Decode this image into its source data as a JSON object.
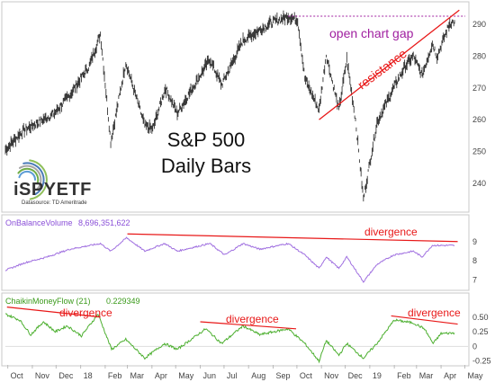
{
  "chart_data": [
    {
      "type": "line",
      "title": "S&P 500",
      "subtitle": "Daily Bars",
      "series": [
        {
          "name": ""
        }
      ],
      "ylim": [
        232,
        296
      ],
      "yticks": [
        240,
        250,
        260,
        270,
        280,
        290
      ],
      "anchor_points": [
        {
          "x": "2017-09-28",
          "y": 250.5
        },
        {
          "x": "2017-10-20",
          "y": 256.5
        },
        {
          "x": "2017-11-06",
          "y": 258.8
        },
        {
          "x": "2017-11-29",
          "y": 262
        },
        {
          "x": "2017-12-19",
          "y": 268
        },
        {
          "x": "2018-01-12",
          "y": 277
        },
        {
          "x": "2018-01-26",
          "y": 287
        },
        {
          "x": "2018-02-08",
          "y": 253
        },
        {
          "x": "2018-02-27",
          "y": 278
        },
        {
          "x": "2018-03-23",
          "y": 258
        },
        {
          "x": "2018-04-02",
          "y": 257
        },
        {
          "x": "2018-04-18",
          "y": 270
        },
        {
          "x": "2018-05-03",
          "y": 262
        },
        {
          "x": "2018-06-13",
          "y": 279
        },
        {
          "x": "2018-06-28",
          "y": 271
        },
        {
          "x": "2018-07-25",
          "y": 285
        },
        {
          "x": "2018-08-29",
          "y": 290.5
        },
        {
          "x": "2018-09-20",
          "y": 292.5
        },
        {
          "x": "2018-10-02",
          "y": 291.5
        },
        {
          "x": "2018-10-11",
          "y": 273
        },
        {
          "x": "2018-10-29",
          "y": 263
        },
        {
          "x": "2018-11-07",
          "y": 280.5
        },
        {
          "x": "2018-11-23",
          "y": 263
        },
        {
          "x": "2018-12-03",
          "y": 279
        },
        {
          "x": "2018-12-14",
          "y": 260
        },
        {
          "x": "2018-12-24",
          "y": 235
        },
        {
          "x": "2019-01-10",
          "y": 259
        },
        {
          "x": "2019-01-31",
          "y": 270
        },
        {
          "x": "2019-02-15",
          "y": 277
        },
        {
          "x": "2019-02-25",
          "y": 280
        },
        {
          "x": "2019-03-08",
          "y": 274
        },
        {
          "x": "2019-03-21",
          "y": 284
        },
        {
          "x": "2019-03-27",
          "y": 280
        },
        {
          "x": "2019-04-12",
          "y": 290.5
        },
        {
          "x": "2019-04-18",
          "y": 290.8
        }
      ],
      "annotations": {
        "gap_label": "open chart gap",
        "gap_level": 292.6,
        "resistance_label": "resistance",
        "resistance_line": [
          {
            "x": "2018-10-29",
            "y": 260
          },
          {
            "x": "2019-04-24",
            "y": 294.5
          }
        ]
      }
    },
    {
      "type": "line",
      "title": "OnBalanceVolume",
      "current_value": "8,696,351,622",
      "ylim": [
        6.5,
        9.6
      ],
      "yticks": [
        7,
        8,
        9
      ],
      "anchor_points": [
        {
          "x": "2017-09-28",
          "y": 7.5
        },
        {
          "x": "2017-10-23",
          "y": 7.9
        },
        {
          "x": "2017-11-20",
          "y": 8.2
        },
        {
          "x": "2017-12-18",
          "y": 8.6
        },
        {
          "x": "2018-01-26",
          "y": 8.9
        },
        {
          "x": "2018-02-08",
          "y": 8.5
        },
        {
          "x": "2018-02-28",
          "y": 9.2
        },
        {
          "x": "2018-03-23",
          "y": 8.5
        },
        {
          "x": "2018-04-17",
          "y": 8.9
        },
        {
          "x": "2018-05-03",
          "y": 8.5
        },
        {
          "x": "2018-06-13",
          "y": 8.9
        },
        {
          "x": "2018-07-02",
          "y": 8.3
        },
        {
          "x": "2018-07-25",
          "y": 8.9
        },
        {
          "x": "2018-08-15",
          "y": 8.6
        },
        {
          "x": "2018-09-20",
          "y": 8.9
        },
        {
          "x": "2018-10-11",
          "y": 8.3
        },
        {
          "x": "2018-10-29",
          "y": 7.6
        },
        {
          "x": "2018-11-07",
          "y": 8.2
        },
        {
          "x": "2018-11-23",
          "y": 7.6
        },
        {
          "x": "2018-12-03",
          "y": 8.2
        },
        {
          "x": "2018-12-24",
          "y": 6.9
        },
        {
          "x": "2019-01-10",
          "y": 7.8
        },
        {
          "x": "2019-01-31",
          "y": 8.3
        },
        {
          "x": "2019-02-25",
          "y": 8.5
        },
        {
          "x": "2019-03-08",
          "y": 8.2
        },
        {
          "x": "2019-03-21",
          "y": 8.8
        },
        {
          "x": "2019-04-18",
          "y": 8.8
        }
      ],
      "annotations": {
        "divergence_label": "divergence",
        "divergence_line": [
          {
            "x": "2018-03-01",
            "y": 9.4
          },
          {
            "x": "2019-04-22",
            "y": 9.0
          }
        ]
      }
    },
    {
      "type": "line",
      "title": "ChaikinMoneyFlow (21)",
      "current_value": "0.229349",
      "ylim": [
        -0.3,
        0.68
      ],
      "yticks": [
        -0.25,
        0,
        0.25,
        0.5
      ],
      "anchor_points": [
        {
          "x": "2017-09-28",
          "y": 0.55
        },
        {
          "x": "2017-10-16",
          "y": 0.45
        },
        {
          "x": "2017-10-30",
          "y": 0.2
        },
        {
          "x": "2017-11-15",
          "y": 0.42
        },
        {
          "x": "2017-11-30",
          "y": 0.25
        },
        {
          "x": "2017-12-15",
          "y": 0.35
        },
        {
          "x": "2018-01-02",
          "y": 0.18
        },
        {
          "x": "2018-01-23",
          "y": 0.55
        },
        {
          "x": "2018-02-09",
          "y": -0.05
        },
        {
          "x": "2018-02-27",
          "y": 0.12
        },
        {
          "x": "2018-03-23",
          "y": -0.2
        },
        {
          "x": "2018-04-17",
          "y": 0.05
        },
        {
          "x": "2018-05-03",
          "y": -0.05
        },
        {
          "x": "2018-06-08",
          "y": 0.3
        },
        {
          "x": "2018-06-28",
          "y": 0.05
        },
        {
          "x": "2018-07-25",
          "y": 0.35
        },
        {
          "x": "2018-08-15",
          "y": 0.2
        },
        {
          "x": "2018-09-20",
          "y": 0.3
        },
        {
          "x": "2018-10-11",
          "y": 0.05
        },
        {
          "x": "2018-10-29",
          "y": -0.25
        },
        {
          "x": "2018-11-07",
          "y": 0.1
        },
        {
          "x": "2018-11-23",
          "y": -0.15
        },
        {
          "x": "2018-12-03",
          "y": 0.05
        },
        {
          "x": "2018-12-24",
          "y": -0.2
        },
        {
          "x": "2019-01-10",
          "y": 0.05
        },
        {
          "x": "2019-02-01",
          "y": 0.45
        },
        {
          "x": "2019-02-25",
          "y": 0.4
        },
        {
          "x": "2019-03-11",
          "y": 0.3
        },
        {
          "x": "2019-03-22",
          "y": 0.05
        },
        {
          "x": "2019-04-01",
          "y": 0.22
        },
        {
          "x": "2019-04-18",
          "y": 0.23
        }
      ],
      "annotations": {
        "divergence_label": "divergence",
        "divergence_lines": [
          {
            "label": "divergence",
            "points": [
              {
                "x": "2017-09-30",
                "y": 0.67
              },
              {
                "x": "2018-01-26",
                "y": 0.5
              }
            ]
          },
          {
            "label": "divergence",
            "points": [
              {
                "x": "2018-06-01",
                "y": 0.42
              },
              {
                "x": "2018-09-30",
                "y": 0.3
              }
            ]
          },
          {
            "label": "divergence",
            "points": [
              {
                "x": "2019-01-28",
                "y": 0.52
              },
              {
                "x": "2019-04-22",
                "y": 0.38
              }
            ]
          }
        ]
      }
    }
  ],
  "x_axis": {
    "ticks": [
      {
        "label": "Oct",
        "date": "2017-10-01"
      },
      {
        "label": "Nov",
        "date": "2017-11-01"
      },
      {
        "label": "Dec",
        "date": "2017-12-01"
      },
      {
        "label": "18",
        "date": "2018-01-01"
      },
      {
        "label": "Feb",
        "date": "2018-02-01"
      },
      {
        "label": "Mar",
        "date": "2018-03-01"
      },
      {
        "label": "Apr",
        "date": "2018-04-01"
      },
      {
        "label": "May",
        "date": "2018-05-01"
      },
      {
        "label": "Jun",
        "date": "2018-06-01"
      },
      {
        "label": "Jul",
        "date": "2018-07-01"
      },
      {
        "label": "Aug",
        "date": "2018-08-01"
      },
      {
        "label": "Sep",
        "date": "2018-09-01"
      },
      {
        "label": "Oct",
        "date": "2018-10-01"
      },
      {
        "label": "Nov",
        "date": "2018-11-01"
      },
      {
        "label": "Dec",
        "date": "2018-12-01"
      },
      {
        "label": "19",
        "date": "2019-01-01"
      },
      {
        "label": "Feb",
        "date": "2019-02-01"
      },
      {
        "label": "Mar",
        "date": "2019-03-01"
      },
      {
        "label": "Apr",
        "date": "2019-04-01"
      },
      {
        "label": "May",
        "date": "2019-05-01"
      }
    ]
  },
  "logo": {
    "name": "iSPYETF",
    "source": "Datasource: TD Ameritrade"
  },
  "colors": {
    "price": "#3a3a3a",
    "obv": "#a070e0",
    "cmf": "#4caf2f",
    "annotation_red": "#e81818",
    "gap_purple": "#a020a0",
    "obv_label": "#8a4fd8",
    "cmf_label": "#3a9a1a",
    "axis_text": "#444444"
  }
}
